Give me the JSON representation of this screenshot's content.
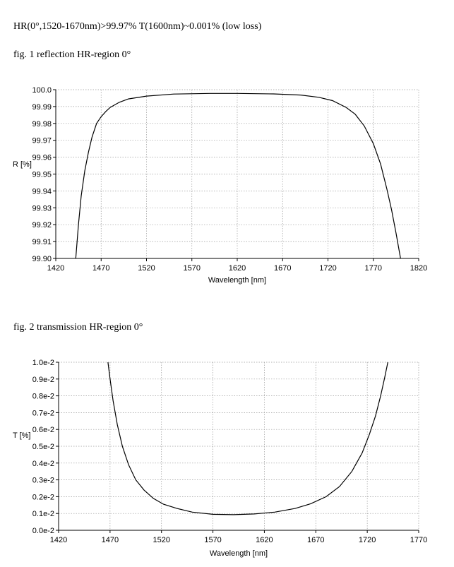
{
  "document": {
    "spec_line": "HR(0°,1520-1670nm)>99.97%  T(1600nm)~0.001%  (low loss)",
    "fig1_caption": "fig. 1 reflection HR-region  0°",
    "fig2_caption": "fig. 2 transmission HR-region  0°"
  },
  "chart_data": [
    {
      "type": "line",
      "title": "",
      "xlabel": "Wavelength [nm]",
      "ylabel": "R [%]",
      "xlim": [
        1420,
        1820
      ],
      "ylim": [
        99.9,
        100.0
      ],
      "x_ticks": [
        1420,
        1470,
        1520,
        1570,
        1620,
        1670,
        1720,
        1770,
        1820
      ],
      "x_tick_labels": [
        "1420",
        "1470",
        "1520",
        "1570",
        "1620",
        "1670",
        "1720",
        "1770",
        "1820"
      ],
      "y_ticks": [
        99.9,
        99.91,
        99.92,
        99.93,
        99.94,
        99.95,
        99.96,
        99.97,
        99.98,
        99.99,
        100.0
      ],
      "y_tick_labels": [
        "99.90",
        "99.91",
        "99.92",
        "99.93",
        "99.94",
        "99.95",
        "99.96",
        "99.97",
        "99.98",
        "99.99",
        "100.0"
      ],
      "grid": true,
      "series": [
        {
          "x": [
            1442,
            1445,
            1448,
            1452,
            1456,
            1460,
            1465,
            1470,
            1475,
            1480,
            1490,
            1500,
            1520,
            1550,
            1590,
            1620,
            1660,
            1690,
            1710,
            1725,
            1740,
            1750,
            1760,
            1770,
            1778,
            1785,
            1790,
            1795,
            1800
          ],
          "y": [
            99.9,
            99.92,
            99.937,
            99.952,
            99.963,
            99.972,
            99.98,
            99.984,
            99.987,
            99.9895,
            99.9925,
            99.9945,
            99.9962,
            99.9974,
            99.9978,
            99.9978,
            99.9975,
            99.9968,
            99.9955,
            99.9935,
            99.9895,
            99.9855,
            99.9785,
            99.968,
            99.956,
            99.941,
            99.929,
            99.915,
            99.9
          ]
        }
      ]
    },
    {
      "type": "line",
      "title": "",
      "xlabel": "Wavelength [nm]",
      "ylabel": "T [%]",
      "xlim": [
        1420,
        1770
      ],
      "ylim": [
        0.0,
        0.01
      ],
      "x_ticks": [
        1420,
        1470,
        1520,
        1570,
        1620,
        1670,
        1720,
        1770
      ],
      "x_tick_labels": [
        "1420",
        "1470",
        "1520",
        "1570",
        "1620",
        "1670",
        "1720",
        "1770"
      ],
      "y_ticks": [
        0.0,
        0.001,
        0.002,
        0.003,
        0.004,
        0.005,
        0.006,
        0.007,
        0.008,
        0.009,
        0.01
      ],
      "y_tick_labels": [
        "0.0e-2",
        "0.1e-2",
        "0.2e-2",
        "0.3e-2",
        "0.4e-2",
        "0.5e-2",
        "0.6e-2",
        "0.7e-2",
        "0.8e-2",
        "0.9e-2",
        "1.0e-2"
      ],
      "grid": true,
      "series": [
        {
          "x": [
            1468,
            1470,
            1473,
            1477,
            1482,
            1488,
            1495,
            1503,
            1512,
            1522,
            1535,
            1550,
            1570,
            1590,
            1610,
            1630,
            1650,
            1665,
            1680,
            1693,
            1705,
            1715,
            1722,
            1728,
            1733,
            1737,
            1740
          ],
          "y": [
            0.01,
            0.009,
            0.0077,
            0.0063,
            0.005,
            0.0039,
            0.003,
            0.0024,
            0.0019,
            0.00155,
            0.0013,
            0.00108,
            0.00095,
            0.00093,
            0.00097,
            0.00108,
            0.0013,
            0.00158,
            0.002,
            0.0026,
            0.0035,
            0.0046,
            0.0057,
            0.0068,
            0.008,
            0.0091,
            0.01
          ]
        }
      ]
    }
  ]
}
